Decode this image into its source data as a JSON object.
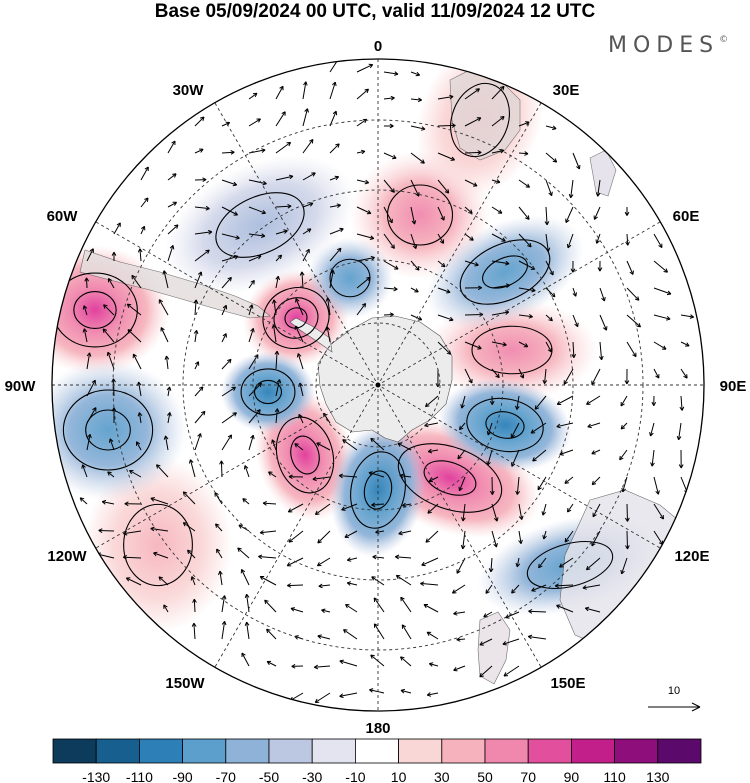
{
  "title": "Base 05/09/2024 00 UTC, valid 11/09/2024 12 UTC",
  "brand": "MODES",
  "brand_mark": "©",
  "longitude_labels": {
    "lon_0": "0",
    "lon_30e": "30E",
    "lon_60e": "60E",
    "lon_90e": "90E",
    "lon_120e": "120E",
    "lon_150e": "150E",
    "lon_180": "180",
    "lon_150w": "150W",
    "lon_120w": "120W",
    "lon_90w": "90W",
    "lon_60w": "60W",
    "lon_30w": "30W"
  },
  "reference_vector": {
    "label": "10"
  },
  "colorbar": {
    "tick_labels": [
      "-130",
      "-110",
      "-90",
      "-70",
      "-50",
      "-30",
      "-10",
      "10",
      "30",
      "50",
      "70",
      "90",
      "110",
      "130"
    ],
    "colors": [
      "#0d3b5c",
      "#165f8e",
      "#2c7fb7",
      "#5c9fcc",
      "#8fb3d8",
      "#bcc8e2",
      "#e3e4f0",
      "#ffffff",
      "#fad7d7",
      "#f6b3bd",
      "#f087ad",
      "#e2509d",
      "#c21f8a",
      "#8e0f7b",
      "#5b0a6c"
    ]
  },
  "anomaly_centers": [
    {
      "name": "pos-center-1",
      "value": 85
    },
    {
      "name": "pos-center-2",
      "value": 90
    },
    {
      "name": "pos-center-3",
      "value": 70
    },
    {
      "name": "pos-center-4",
      "value": 75
    },
    {
      "name": "pos-center-5",
      "value": 50
    },
    {
      "name": "pos-center-6",
      "value": 45
    },
    {
      "name": "pos-center-7",
      "value": 40
    },
    {
      "name": "pos-center-8",
      "value": 35
    },
    {
      "name": "neg-center-1",
      "value": -85
    },
    {
      "name": "neg-center-2",
      "value": -80
    },
    {
      "name": "neg-center-3",
      "value": -80
    },
    {
      "name": "neg-center-4",
      "value": -65
    },
    {
      "name": "neg-center-5",
      "value": -65
    },
    {
      "name": "neg-center-6",
      "value": -50
    },
    {
      "name": "neg-center-7",
      "value": -45
    },
    {
      "name": "neg-center-8",
      "value": -40
    }
  ]
}
